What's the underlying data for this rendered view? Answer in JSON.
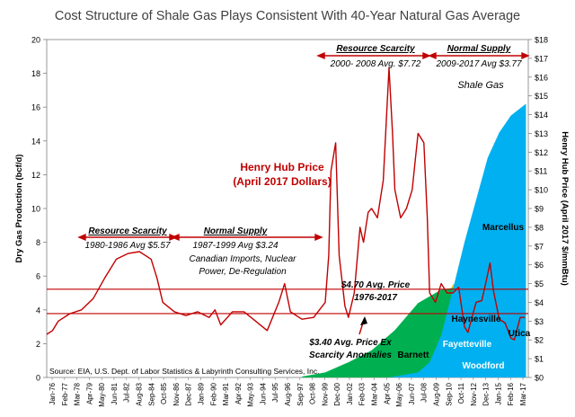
{
  "chart_data": {
    "type": "area",
    "title": "Cost Structure of Shale Gas Plays Consistent With 40-Year Natural Gas Average",
    "ylabel_left": "Dry Gas Production (bcf/d)",
    "ylabel_right": "Henry Hub Price (April 2017 $/mmBtu)",
    "ylim_left": [
      0,
      20
    ],
    "ylim_right": [
      0,
      18
    ],
    "xlim": [
      1976.0,
      2017.5
    ],
    "grid": false,
    "left_ticks": [
      "0",
      "2",
      "4",
      "6",
      "8",
      "10",
      "12",
      "14",
      "16",
      "18",
      "20"
    ],
    "right_ticks": [
      "$0",
      "$1",
      "$2",
      "$3",
      "$4",
      "$5",
      "$6",
      "$7",
      "$8",
      "$9",
      "$10",
      "$11",
      "$12",
      "$13",
      "$14",
      "$15",
      "$16",
      "$17",
      "$18"
    ],
    "x_ticks": [
      "Jan-76",
      "Feb-77",
      "Mar-78",
      "Apr-79",
      "May-80",
      "Jun-81",
      "Jul-82",
      "Aug-83",
      "Sep-84",
      "Oct-85",
      "Nov-86",
      "Dec-87",
      "Jan-89",
      "Feb-90",
      "Mar-91",
      "Apr-92",
      "May-93",
      "Jun-94",
      "Jul-95",
      "Aug-96",
      "Sep-97",
      "Oct-98",
      "Nov-99",
      "Dec-00",
      "Jan-02",
      "Feb-03",
      "Mar-04",
      "Apr-05",
      "May-06",
      "Jun-07",
      "Jul-08",
      "Aug-09",
      "Sep-10",
      "Oct-11",
      "Nov-12",
      "Dec-13",
      "Jan-15",
      "Feb-16",
      "Mar-17"
    ],
    "area_series": [
      {
        "name": "Woodford",
        "color": "#bfbfbf",
        "x": [
          2005.5,
          2008,
          2010,
          2012,
          2014,
          2017.3
        ],
        "values": [
          0,
          0.2,
          0.6,
          0.9,
          1.1,
          1.3
        ]
      },
      {
        "name": "Fayetteville",
        "color": "#c00000",
        "x": [
          2005.5,
          2008,
          2010,
          2012,
          2014,
          2015.5,
          2017.3
        ],
        "values": [
          0,
          0.4,
          1.5,
          2.5,
          2.8,
          2.7,
          2.3
        ]
      },
      {
        "name": "Haynesville",
        "color": "#ffc000",
        "x": [
          2005.5,
          2008,
          2009,
          2010,
          2011,
          2011.8,
          2013,
          2015,
          2017.3
        ],
        "values": [
          0,
          0.6,
          1.8,
          3.8,
          5.5,
          5.8,
          4.2,
          3.4,
          3.4
        ]
      },
      {
        "name": "Utica",
        "color": "#ffff00",
        "x": [
          2005.5,
          2012,
          2013,
          2014,
          2015,
          2016,
          2017.3
        ],
        "values": [
          0,
          3.9,
          4.2,
          4.8,
          5.6,
          6.2,
          6.6
        ]
      },
      {
        "name": "Barnett",
        "color": "#00b050",
        "x": [
          1998,
          2000,
          2002,
          2004,
          2006,
          2008,
          2010,
          2012,
          2014,
          2016,
          2017.3
        ],
        "values": [
          0.05,
          0.3,
          0.9,
          1.6,
          2.8,
          4.4,
          5.2,
          5.4,
          5.0,
          4.8,
          4.6
        ]
      },
      {
        "name": "Marcellus",
        "color": "#00b0f0",
        "x": [
          2005.5,
          2008,
          2009,
          2010,
          2011,
          2012,
          2013,
          2014,
          2015,
          2016,
          2017.3
        ],
        "values": [
          0,
          0.3,
          0.9,
          2.5,
          5.2,
          8.0,
          10.5,
          13.0,
          14.5,
          15.5,
          16.2
        ]
      }
    ],
    "price_series": {
      "name": "Henry Hub Price (April 2017 Dollars)",
      "color": "#c00000",
      "x": [
        1976,
        1976.5,
        1977,
        1978,
        1979,
        1980,
        1981,
        1982,
        1983,
        1984,
        1985,
        1985.5,
        1986,
        1987,
        1988,
        1989,
        1990,
        1990.5,
        1991,
        1992,
        1993,
        1994,
        1995,
        1996,
        1996.5,
        1997,
        1998,
        1999,
        2000,
        2000.3,
        2000.5,
        2000.9,
        2001.2,
        2001.7,
        2002,
        2002.5,
        2003,
        2003.3,
        2003.7,
        2004,
        2004.5,
        2005,
        2005.5,
        2005.8,
        2006,
        2006.5,
        2007,
        2007.5,
        2008,
        2008.5,
        2008.8,
        2009,
        2009.5,
        2010,
        2010.5,
        2011,
        2011.5,
        2012,
        2012.3,
        2013,
        2013.5,
        2014,
        2014.2,
        2014.5,
        2015,
        2015.5,
        2016,
        2016.3,
        2016.8,
        2017.2
      ],
      "values": [
        2.3,
        2.5,
        3.0,
        3.4,
        3.6,
        4.2,
        5.3,
        6.3,
        6.6,
        6.7,
        6.3,
        5.3,
        4.0,
        3.5,
        3.3,
        3.5,
        3.2,
        3.6,
        2.8,
        3.5,
        3.5,
        3.0,
        2.5,
        4.0,
        5.0,
        3.5,
        3.1,
        3.2,
        4.0,
        6.5,
        11.0,
        12.5,
        6.5,
        3.8,
        3.2,
        4.5,
        8.0,
        7.2,
        8.8,
        9.0,
        8.5,
        10.5,
        16.5,
        13.0,
        10.0,
        8.5,
        9.0,
        10.0,
        13.0,
        12.5,
        8.5,
        4.5,
        4.0,
        5.0,
        4.5,
        4.5,
        4.8,
        2.7,
        2.4,
        4.0,
        4.1,
        5.5,
        6.1,
        4.6,
        3.1,
        2.9,
        2.1,
        2.0,
        3.2,
        3.2
      ]
    },
    "annotations": {
      "resource_scarcity_1": "Resource Scarcity",
      "resource_scarcity_1_avg": "1980-1986 Avg $5.57",
      "normal_supply_1": "Normal Supply",
      "normal_supply_1_avg": "1987-1999 Avg $3.24",
      "normal_supply_1_note_1": "Canadian Imports, Nuclear",
      "normal_supply_1_note_2": "Power, De-Regulation",
      "resource_scarcity_2": "Resource Scarcity",
      "resource_scarcity_2_avg": "2000- 2008 Avg. $7.72",
      "normal_supply_2": "Normal Supply",
      "normal_supply_2_avg": "2009-2017 Avg $3.77",
      "shale_gas": "Shale Gas",
      "hh_label_1": "Henry Hub Price",
      "hh_label_2": "(April 2017 Dollars)",
      "avg_470_1": "$4.70 Avg. Price",
      "avg_470_2": "1976-2017",
      "avg_340_1": "$3.40 Avg. Price Ex",
      "avg_340_2": "Scarcity Anomalies",
      "source": "Source: EIA, U.S. Dept. of Labor Statistics & Labyrinth Consulting Services, Inc."
    },
    "reference_lines": [
      {
        "value": 4.7,
        "axis": "right",
        "color": "#c00000"
      },
      {
        "value": 3.4,
        "axis": "right",
        "color": "#c00000"
      }
    ]
  }
}
